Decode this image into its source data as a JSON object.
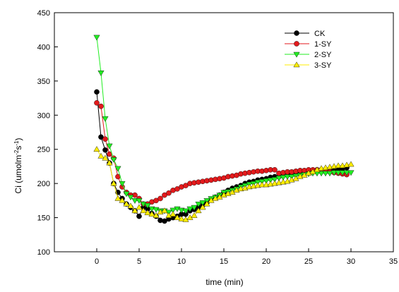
{
  "chart_data": {
    "type": "scatter",
    "xlabel": "time (min)",
    "ylabel_main": "Ci (umolm",
    "ylabel_sup1": "-2",
    "ylabel_mid": "s",
    "ylabel_sup2": "-1",
    "ylabel_end": ")",
    "xlim": [
      -5,
      35
    ],
    "ylim": [
      100,
      450
    ],
    "xticks": [
      0,
      5,
      10,
      15,
      20,
      25,
      30,
      35
    ],
    "yticks": [
      100,
      150,
      200,
      250,
      300,
      350,
      400,
      450
    ],
    "legend_position": "top-right",
    "series": [
      {
        "name": "CK",
        "color": "#000000",
        "marker": "circle",
        "x": [
          0,
          0.5,
          1,
          1.5,
          2,
          2.5,
          3,
          3.5,
          4,
          4.5,
          5,
          5.5,
          6,
          6.5,
          7,
          7.5,
          8,
          8.5,
          9,
          9.5,
          10,
          10.5,
          11,
          11.5,
          12,
          12.5,
          13,
          13.5,
          14,
          14.5,
          15,
          15.5,
          16,
          16.5,
          17,
          17.5,
          18,
          18.5,
          19,
          19.5,
          20,
          20.5,
          21,
          21.5,
          22,
          22.5,
          23,
          23.5,
          24,
          24.5,
          25,
          25.5,
          26,
          26.5,
          27,
          27.5,
          28,
          28.5,
          29,
          29.5
        ],
        "y": [
          334,
          268,
          249,
          230,
          200,
          187,
          178,
          170,
          165,
          160,
          152,
          165,
          163,
          156,
          152,
          146,
          145,
          148,
          150,
          152,
          155,
          155,
          160,
          162,
          165,
          168,
          172,
          177,
          180,
          183,
          187,
          190,
          193,
          195,
          197,
          200,
          202,
          203,
          205,
          206,
          207,
          209,
          210,
          210,
          212,
          213,
          214,
          215,
          216,
          217,
          218,
          219,
          220,
          220,
          220,
          221,
          221,
          222,
          222,
          223
        ]
      },
      {
        "name": "1-SY",
        "color": "#e31a1c",
        "marker": "circle",
        "x": [
          0,
          0.5,
          1,
          1.5,
          2,
          2.5,
          3,
          3.5,
          4,
          4.5,
          5,
          5.5,
          6,
          6.5,
          7,
          7.5,
          8,
          8.5,
          9,
          9.5,
          10,
          10.5,
          11,
          11.5,
          12,
          12.5,
          13,
          13.5,
          14,
          14.5,
          15,
          15.5,
          16,
          16.5,
          17,
          17.5,
          18,
          18.5,
          19,
          19.5,
          20,
          20.5,
          21,
          21.5,
          22,
          22.5,
          23,
          23.5,
          24,
          24.5,
          25,
          25.5,
          26,
          26.5,
          27,
          27.5,
          28,
          28.5,
          29,
          29.5
        ],
        "y": [
          318,
          313,
          265,
          243,
          237,
          210,
          195,
          187,
          183,
          183,
          178,
          170,
          170,
          173,
          175,
          178,
          183,
          186,
          190,
          192,
          195,
          197,
          200,
          201,
          202,
          203,
          204,
          205,
          206,
          207,
          208,
          210,
          211,
          212,
          214,
          215,
          216,
          217,
          218,
          218,
          219,
          220,
          220,
          215,
          216,
          217,
          217,
          218,
          219,
          219,
          220,
          220,
          220,
          219,
          218,
          217,
          216,
          215,
          214,
          213
        ]
      },
      {
        "name": "2-SY",
        "color": "#22ee22",
        "marker": "triangle-down",
        "x": [
          0,
          0.5,
          1,
          1.5,
          2,
          2.5,
          3,
          3.5,
          4,
          4.5,
          5,
          5.5,
          6,
          6.5,
          7,
          7.5,
          8,
          8.5,
          9,
          9.5,
          10,
          10.5,
          11,
          11.5,
          12,
          12.5,
          13,
          13.5,
          14,
          14.5,
          15,
          15.5,
          16,
          16.5,
          17,
          17.5,
          18,
          18.5,
          19,
          19.5,
          20,
          20.5,
          21,
          21.5,
          22,
          22.5,
          23,
          23.5,
          24,
          24.5,
          25,
          25.5,
          26,
          26.5,
          27,
          27.5,
          28,
          28.5,
          29,
          29.5,
          30
        ],
        "y": [
          414,
          362,
          295,
          255,
          235,
          222,
          200,
          185,
          180,
          175,
          175,
          170,
          168,
          163,
          162,
          160,
          160,
          158,
          161,
          163,
          161,
          160,
          163,
          165,
          170,
          172,
          175,
          178,
          180,
          183,
          187,
          188,
          190,
          192,
          195,
          197,
          199,
          200,
          202,
          203,
          204,
          205,
          206,
          208,
          209,
          210,
          210,
          211,
          212,
          213,
          214,
          215,
          215,
          215,
          215,
          215,
          216,
          216,
          216,
          216,
          216
        ]
      },
      {
        "name": "3-SY",
        "color": "#ffee00",
        "marker": "triangle-up",
        "x": [
          0,
          0.5,
          1,
          1.5,
          2,
          2.5,
          3,
          3.5,
          4,
          4.5,
          5,
          5.5,
          6,
          6.5,
          7,
          7.5,
          8,
          8.5,
          9,
          9.5,
          10,
          10.5,
          11,
          11.5,
          12,
          12.5,
          13,
          13.5,
          14,
          14.5,
          15,
          15.5,
          16,
          16.5,
          17,
          17.5,
          18,
          18.5,
          19,
          19.5,
          20,
          20.5,
          21,
          21.5,
          22,
          22.5,
          23,
          23.5,
          24,
          24.5,
          25,
          25.5,
          26,
          26.5,
          27,
          27.5,
          28,
          28.5,
          29,
          29.5,
          30
        ],
        "y": [
          250,
          240,
          237,
          230,
          200,
          178,
          175,
          170,
          167,
          160,
          165,
          160,
          157,
          155,
          153,
          158,
          160,
          153,
          155,
          150,
          148,
          147,
          150,
          153,
          160,
          165,
          170,
          175,
          178,
          180,
          183,
          185,
          187,
          190,
          192,
          193,
          195,
          196,
          197,
          198,
          198,
          199,
          200,
          201,
          202,
          203,
          205,
          207,
          210,
          212,
          215,
          217,
          220,
          222,
          223,
          224,
          225,
          226,
          226,
          227,
          228
        ]
      }
    ]
  }
}
